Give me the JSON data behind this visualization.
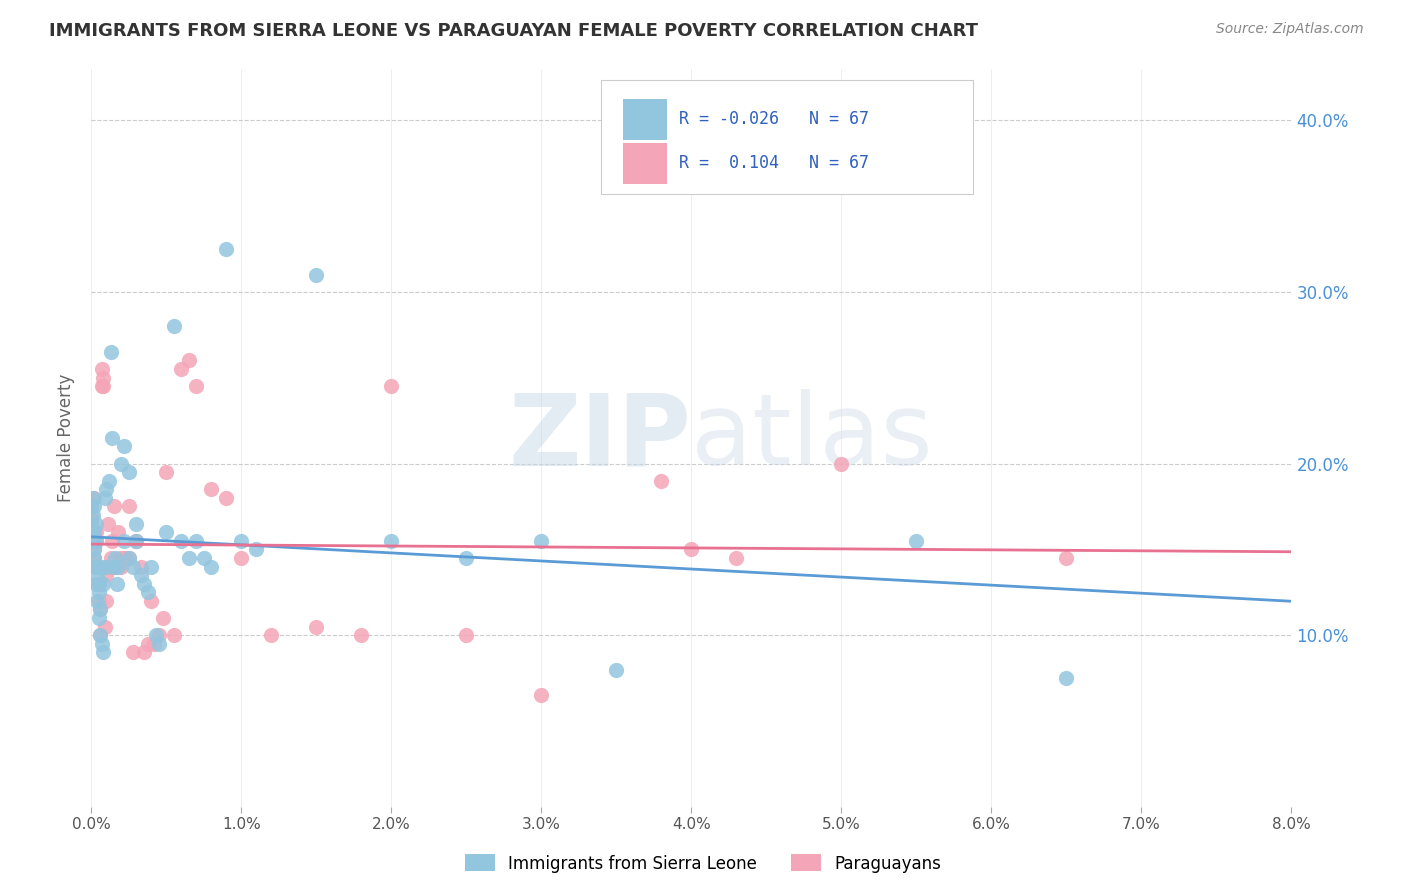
{
  "title": "IMMIGRANTS FROM SIERRA LEONE VS PARAGUAYAN FEMALE POVERTY CORRELATION CHART",
  "source": "Source: ZipAtlas.com",
  "ylabel": "Female Poverty",
  "ytick_vals": [
    0.1,
    0.2,
    0.3,
    0.4
  ],
  "ytick_labels": [
    "10.0%",
    "20.0%",
    "30.0%",
    "40.0%"
  ],
  "legend1_label": "Immigrants from Sierra Leone",
  "legend2_label": "Paraguayans",
  "R1": -0.026,
  "N1": 67,
  "R2": 0.104,
  "N2": 67,
  "blue_color": "#92C5DE",
  "pink_color": "#F4A6B8",
  "blue_line_color": "#5B9BD5",
  "pink_line_color": "#E87090",
  "xlim": [
    0.0,
    0.08
  ],
  "ylim": [
    0.0,
    0.43
  ],
  "background_color": "#FFFFFF",
  "grid_color": "#CCCCCC",
  "blue_scatter_x": [
    0.0,
    0.0,
    0.0,
    0.0001,
    0.0001,
    0.0001,
    0.0002,
    0.0002,
    0.0002,
    0.0002,
    0.0003,
    0.0003,
    0.0003,
    0.0003,
    0.0004,
    0.0004,
    0.0004,
    0.0005,
    0.0005,
    0.0005,
    0.0006,
    0.0006,
    0.0007,
    0.0007,
    0.0008,
    0.0008,
    0.0009,
    0.001,
    0.001,
    0.0012,
    0.0013,
    0.0014,
    0.0015,
    0.0016,
    0.0017,
    0.0018,
    0.002,
    0.0022,
    0.0022,
    0.0025,
    0.0025,
    0.0028,
    0.003,
    0.003,
    0.0033,
    0.0035,
    0.0038,
    0.004,
    0.0043,
    0.0045,
    0.005,
    0.0055,
    0.006,
    0.0065,
    0.007,
    0.0075,
    0.008,
    0.009,
    0.01,
    0.011,
    0.015,
    0.02,
    0.025,
    0.03,
    0.035,
    0.055,
    0.065
  ],
  "blue_scatter_y": [
    0.175,
    0.165,
    0.16,
    0.17,
    0.155,
    0.18,
    0.145,
    0.15,
    0.16,
    0.175,
    0.13,
    0.14,
    0.155,
    0.165,
    0.12,
    0.135,
    0.14,
    0.11,
    0.125,
    0.13,
    0.1,
    0.115,
    0.095,
    0.14,
    0.09,
    0.13,
    0.18,
    0.14,
    0.185,
    0.19,
    0.265,
    0.215,
    0.14,
    0.145,
    0.13,
    0.14,
    0.2,
    0.155,
    0.21,
    0.195,
    0.145,
    0.14,
    0.155,
    0.165,
    0.135,
    0.13,
    0.125,
    0.14,
    0.1,
    0.095,
    0.16,
    0.28,
    0.155,
    0.145,
    0.155,
    0.145,
    0.14,
    0.325,
    0.155,
    0.15,
    0.31,
    0.155,
    0.145,
    0.155,
    0.08,
    0.155,
    0.075
  ],
  "pink_scatter_x": [
    0.0,
    0.0,
    0.0,
    0.0001,
    0.0001,
    0.0002,
    0.0002,
    0.0002,
    0.0003,
    0.0003,
    0.0003,
    0.0004,
    0.0004,
    0.0005,
    0.0005,
    0.0006,
    0.0006,
    0.0007,
    0.0007,
    0.0008,
    0.0008,
    0.0009,
    0.001,
    0.001,
    0.0011,
    0.0012,
    0.0013,
    0.0014,
    0.0015,
    0.0016,
    0.0017,
    0.0018,
    0.0019,
    0.002,
    0.0022,
    0.0022,
    0.0025,
    0.0025,
    0.0028,
    0.003,
    0.003,
    0.0033,
    0.0035,
    0.0038,
    0.004,
    0.0042,
    0.0045,
    0.0048,
    0.005,
    0.0055,
    0.006,
    0.0065,
    0.007,
    0.008,
    0.009,
    0.01,
    0.012,
    0.015,
    0.018,
    0.02,
    0.025,
    0.03,
    0.038,
    0.04,
    0.043,
    0.05,
    0.065
  ],
  "pink_scatter_y": [
    0.17,
    0.165,
    0.175,
    0.16,
    0.155,
    0.145,
    0.15,
    0.18,
    0.14,
    0.155,
    0.16,
    0.13,
    0.14,
    0.12,
    0.14,
    0.1,
    0.115,
    0.245,
    0.255,
    0.25,
    0.245,
    0.105,
    0.12,
    0.135,
    0.165,
    0.14,
    0.145,
    0.155,
    0.175,
    0.14,
    0.14,
    0.16,
    0.145,
    0.14,
    0.145,
    0.145,
    0.175,
    0.145,
    0.09,
    0.155,
    0.155,
    0.14,
    0.09,
    0.095,
    0.12,
    0.095,
    0.1,
    0.11,
    0.195,
    0.1,
    0.255,
    0.26,
    0.245,
    0.185,
    0.18,
    0.145,
    0.1,
    0.105,
    0.1,
    0.245,
    0.1,
    0.065,
    0.19,
    0.15,
    0.145,
    0.2,
    0.145
  ]
}
